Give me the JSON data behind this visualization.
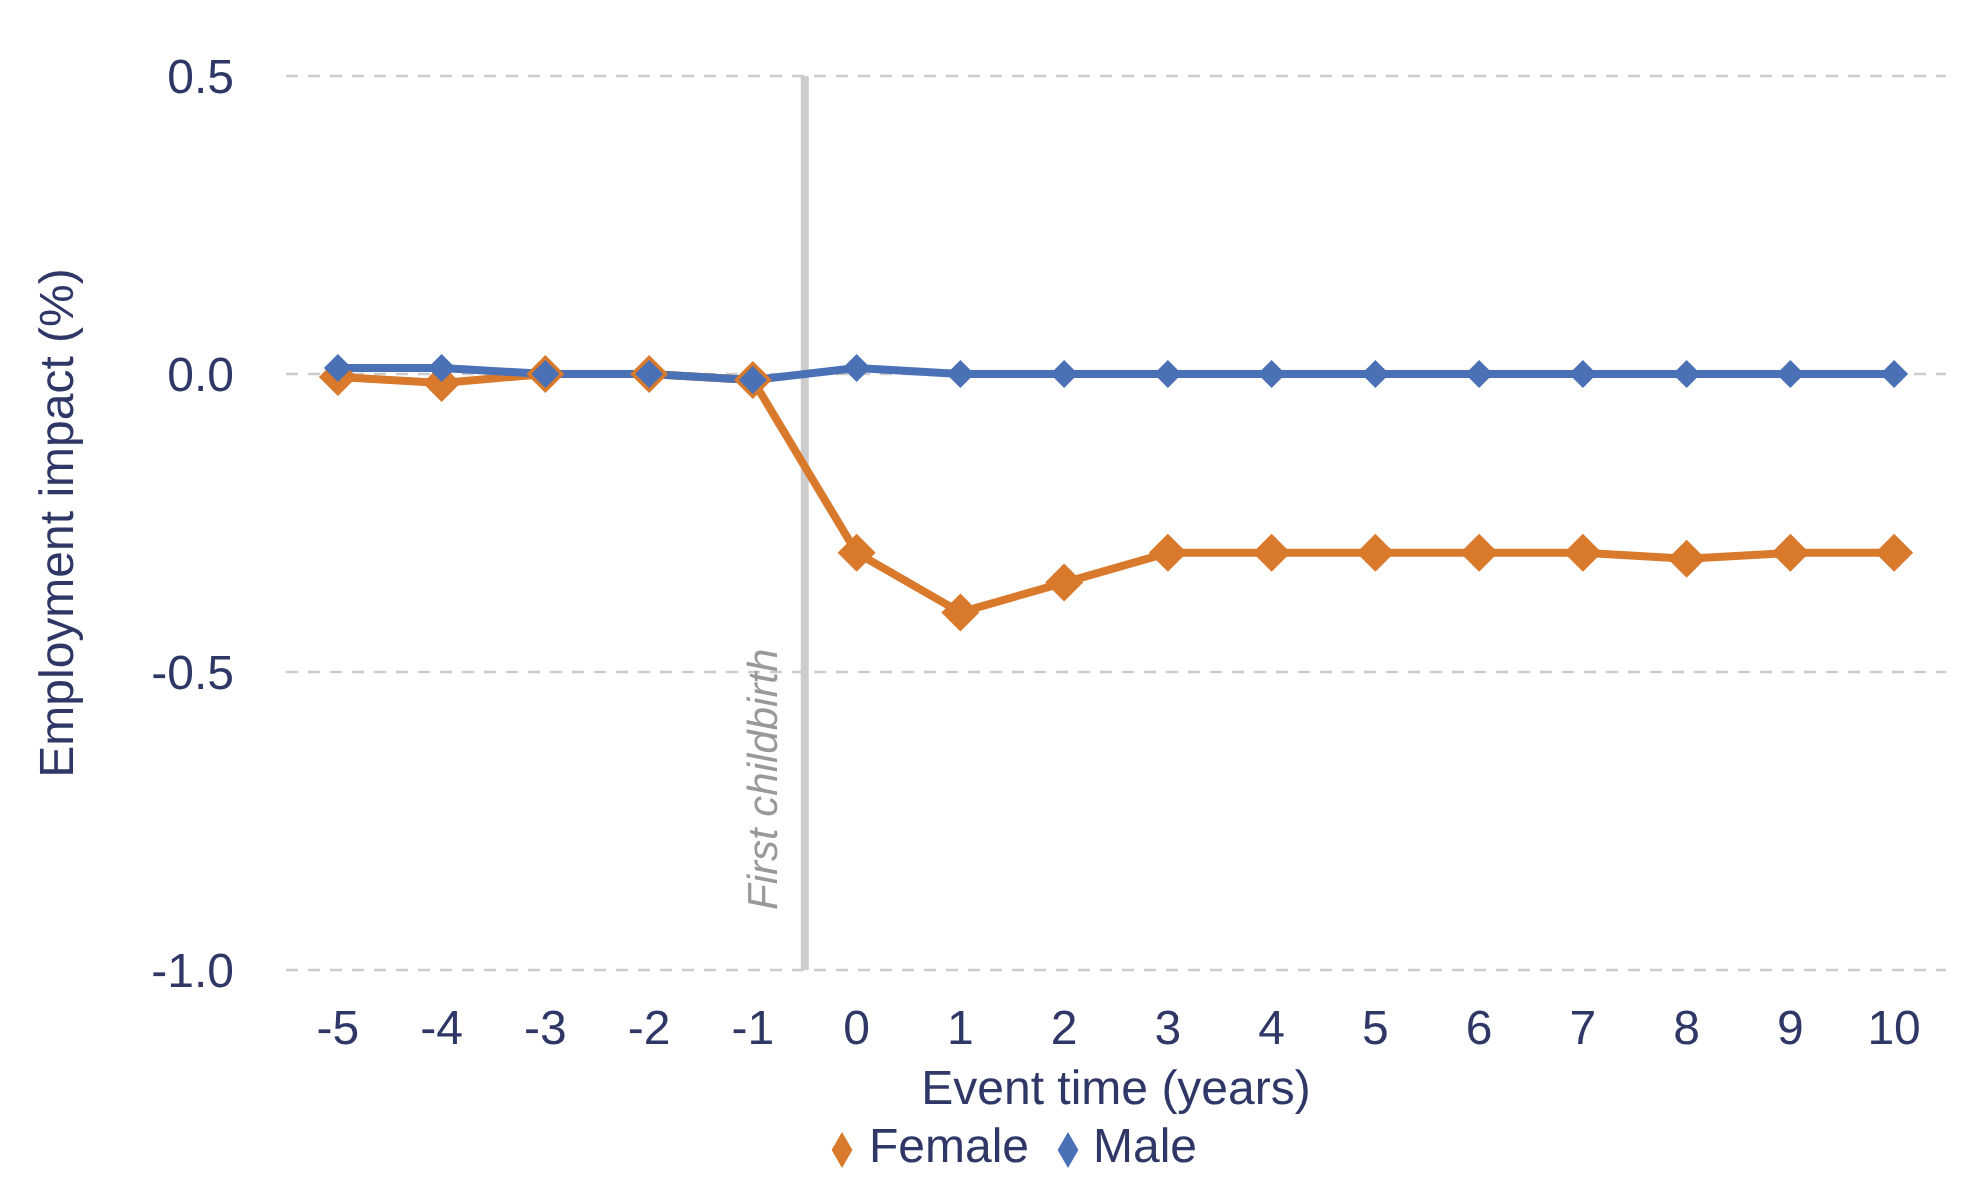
{
  "chart_data": {
    "type": "line",
    "xlabel": "Event time (years)",
    "ylabel": "Employment impact (%)",
    "x": [
      -5,
      -4,
      -3,
      -2,
      -1,
      0,
      1,
      2,
      3,
      4,
      5,
      6,
      7,
      8,
      9,
      10
    ],
    "series": [
      {
        "name": "Female",
        "color": "#d9792b",
        "values": [
          -0.005,
          -0.015,
          0,
          0,
          -0.01,
          -0.3,
          -0.4,
          -0.35,
          -0.3,
          -0.3,
          -0.3,
          -0.3,
          -0.3,
          -0.31,
          -0.3,
          -0.3
        ]
      },
      {
        "name": "Male",
        "color": "#4a71b6",
        "values": [
          0.01,
          0.01,
          0,
          0,
          -0.01,
          0.01,
          0,
          0,
          0,
          0,
          0,
          0,
          0,
          0,
          0,
          0
        ]
      }
    ],
    "xlim": [
      -5.5,
      10.5
    ],
    "xticks": [
      -5,
      -4,
      -3,
      -2,
      -1,
      0,
      1,
      2,
      3,
      4,
      5,
      6,
      7,
      8,
      9,
      10
    ],
    "ylim": [
      -1,
      0.5
    ],
    "yticks": [
      {
        "value": -1,
        "label": "-1.0"
      },
      -0.5,
      {
        "value": 0,
        "label": "0.0"
      },
      0.5
    ],
    "ref_lines": [
      {
        "axis": "x",
        "value": -0.5,
        "label": "First childbirth",
        "color": "#cccccc"
      }
    ],
    "grid": "y",
    "legend": "bottom",
    "marker": "diamond",
    "line_style": "solid"
  }
}
